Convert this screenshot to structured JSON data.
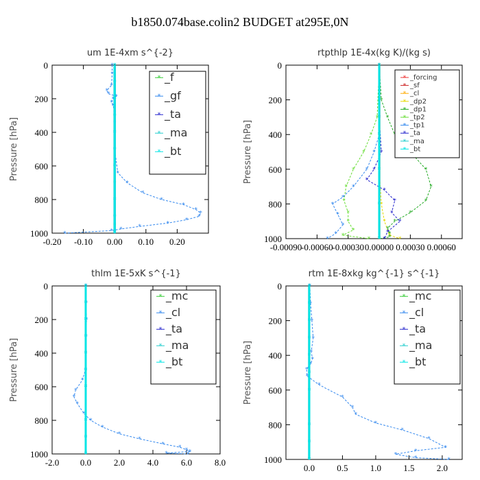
{
  "figure_title": "b1850.074base.colin2  BUDGET at295E,0N",
  "chart_data": [
    {
      "id": "um",
      "type": "line",
      "title": "um   1E-4xm s^{-2}",
      "ylabel": "Pressure [hPa]",
      "xlim": [
        -0.2,
        0.3
      ],
      "ylim": [
        1000,
        0
      ],
      "xticks": [
        -0.2,
        -0.1,
        0.0,
        0.1,
        0.2
      ],
      "xtick_labels": [
        "-0.20",
        "-0.10",
        "0.00",
        "0.10",
        "0.20"
      ],
      "yticks": [
        0,
        200,
        400,
        600,
        800,
        1000
      ],
      "ytick_labels": [
        "0",
        "200",
        "400",
        "600",
        "800",
        "1000"
      ],
      "legend_position": "top-right",
      "series": [
        {
          "name": "_f",
          "color": "#33cc33",
          "x": [
            0,
            0,
            0,
            0,
            0,
            0,
            0,
            0,
            0,
            0,
            0,
            0
          ],
          "y": [
            0,
            100,
            200,
            300,
            400,
            500,
            600,
            700,
            800,
            900,
            950,
            1000
          ]
        },
        {
          "name": "_gf",
          "color": "#3388ee",
          "x": [
            -0.008,
            -0.008,
            -0.01,
            -0.025,
            -0.02,
            0.005,
            -0.005,
            -0.01,
            -0.005,
            0,
            0,
            0,
            0,
            0.01,
            0.04,
            0.09,
            0.15,
            0.22,
            0.26,
            0.275,
            0.27,
            0.23,
            0.17,
            0.08,
            0.02,
            -0.01,
            -0.16
          ],
          "y": [
            0,
            50,
            120,
            150,
            170,
            185,
            200,
            220,
            240,
            280,
            340,
            400,
            500,
            640,
            700,
            760,
            800,
            830,
            860,
            880,
            900,
            920,
            940,
            960,
            975,
            985,
            1000
          ]
        },
        {
          "name": "_ta",
          "color": "#2222cc",
          "x": [
            0,
            0,
            0,
            0,
            0,
            0,
            0,
            0,
            0,
            0
          ],
          "y": [
            0,
            100,
            200,
            300,
            400,
            500,
            600,
            800,
            900,
            1000
          ]
        },
        {
          "name": "_ma",
          "color": "#22cccc",
          "x": [
            0,
            0,
            0,
            0,
            0,
            0,
            0,
            0,
            0,
            0
          ],
          "y": [
            0,
            100,
            200,
            300,
            400,
            500,
            600,
            800,
            900,
            1000
          ]
        },
        {
          "name": "_bt",
          "color": "#00e5e5",
          "x": [
            0,
            0,
            0,
            0,
            0,
            0,
            0,
            0,
            0,
            0
          ],
          "y": [
            0,
            100,
            200,
            300,
            400,
            500,
            600,
            800,
            900,
            1000
          ]
        }
      ]
    },
    {
      "id": "rtpthlp",
      "type": "line",
      "title": "rtpthlp   1E-4x(kg K)/(kg s)",
      "ylabel": "Pressure [hPa]",
      "xlim": [
        -0.0009,
        0.0008
      ],
      "ylim": [
        1000,
        0
      ],
      "xticks": [
        -0.0009,
        -0.0006,
        -0.0003,
        0.0,
        0.0003,
        0.0006
      ],
      "xtick_labels": [
        "-0.00090",
        "-0.00060",
        "-0.00030",
        "0.00000",
        "0.00030",
        "0.00060"
      ],
      "yticks": [
        0,
        200,
        400,
        600,
        800,
        1000
      ],
      "ytick_labels": [
        "0",
        "200",
        "400",
        "600",
        "800",
        "1000"
      ],
      "legend_position": "top-right",
      "series": [
        {
          "name": "_forcing",
          "color": "#ee3333",
          "x": [
            0,
            0,
            0,
            0,
            0,
            0
          ],
          "y": [
            0,
            200,
            400,
            600,
            800,
            1000
          ]
        },
        {
          "name": "_sf",
          "color": "#cc2222",
          "x": [
            0,
            0,
            0,
            0,
            0,
            0
          ],
          "y": [
            0,
            200,
            400,
            600,
            800,
            1000
          ]
        },
        {
          "name": "_cl",
          "color": "#ffaa00",
          "x": [
            0,
            0,
            0,
            0,
            0,
            0
          ],
          "y": [
            0,
            200,
            400,
            600,
            800,
            1000
          ]
        },
        {
          "name": "_dp2",
          "color": "#e6d800",
          "x": [
            0,
            0,
            0,
            0,
            2e-05,
            5e-05,
            0.0001,
            0.0002
          ],
          "y": [
            0,
            200,
            400,
            600,
            800,
            900,
            980,
            1000
          ]
        },
        {
          "name": "_dp1",
          "color": "#22aa22",
          "x": [
            0,
            2e-05,
            8e-05,
            0.00015,
            0.0003,
            0.00045,
            0.0005,
            0.00045,
            0.0003,
            0.00015,
            8e-05,
            0.0001,
            0.0001,
            0.0
          ],
          "y": [
            0,
            200,
            300,
            400,
            500,
            600,
            700,
            780,
            850,
            900,
            940,
            970,
            990,
            1000
          ]
        },
        {
          "name": "_tp2",
          "color": "#66dd33",
          "x": [
            0,
            -2e-05,
            -8e-05,
            -0.00015,
            -0.00025,
            -0.00032,
            -0.00034,
            -0.0003,
            -0.0003,
            -0.00025,
            -0.00035,
            -0.0001
          ],
          "y": [
            0,
            300,
            400,
            500,
            600,
            700,
            780,
            850,
            900,
            950,
            980,
            1000
          ]
        },
        {
          "name": "_tp1",
          "color": "#3388ee",
          "x": [
            0,
            0,
            -5e-05,
            -0.00012,
            -0.00025,
            -0.00035,
            -0.00045,
            -0.0004,
            -0.00035,
            -0.00042,
            -0.0005
          ],
          "y": [
            0,
            400,
            500,
            600,
            700,
            760,
            800,
            860,
            920,
            970,
            1000
          ]
        },
        {
          "name": "_ta",
          "color": "#2222cc",
          "x": [
            0,
            0,
            2e-05,
            -5e-05,
            -0.00012,
            5e-05,
            0.00015,
            0.00012,
            0.0002,
            8e-05,
            5e-05
          ],
          "y": [
            0,
            300,
            500,
            600,
            660,
            720,
            780,
            850,
            900,
            960,
            1000
          ]
        },
        {
          "name": "_ma",
          "color": "#22cccc",
          "x": [
            0,
            0,
            0,
            0,
            0,
            0
          ],
          "y": [
            0,
            200,
            400,
            600,
            800,
            1000
          ]
        },
        {
          "name": "_bt",
          "color": "#00e5e5",
          "x": [
            0,
            0,
            0,
            0,
            0,
            0
          ],
          "y": [
            0,
            200,
            400,
            600,
            800,
            1000
          ]
        }
      ]
    },
    {
      "id": "thlm",
      "type": "line",
      "title": "thlm   1E-5xK s^{-1}",
      "ylabel": "Pressure [hPa]",
      "xlim": [
        -2.0,
        8.0
      ],
      "ylim": [
        1000,
        0
      ],
      "xticks": [
        -2.0,
        0.0,
        2.0,
        4.0,
        6.0,
        8.0
      ],
      "xtick_labels": [
        "-2.0",
        "0.0",
        "2.0",
        "4.0",
        "6.0",
        "8.0"
      ],
      "yticks": [
        0,
        200,
        400,
        600,
        800,
        1000
      ],
      "ytick_labels": [
        "0",
        "200",
        "400",
        "600",
        "800",
        "1000"
      ],
      "legend_position": "top-right",
      "series": [
        {
          "name": "_mc",
          "color": "#33cc33",
          "x": [
            0,
            0,
            0,
            0,
            0,
            0,
            0,
            0,
            0,
            0
          ],
          "y": [
            0,
            100,
            200,
            300,
            400,
            500,
            600,
            800,
            900,
            1000
          ]
        },
        {
          "name": "_cl",
          "color": "#3388ee",
          "x": [
            0.02,
            0.03,
            0.05,
            0.02,
            0,
            -0.02,
            -0.2,
            -0.6,
            -0.7,
            -0.5,
            -0.1,
            0.3,
            1.0,
            2.0,
            3.2,
            4.6,
            5.6,
            6.0,
            6.2,
            4.8,
            6.1
          ],
          "y": [
            0,
            100,
            200,
            300,
            400,
            500,
            560,
            620,
            660,
            700,
            760,
            800,
            840,
            880,
            910,
            940,
            960,
            975,
            985,
            995,
            1000
          ]
        },
        {
          "name": "_ta",
          "color": "#2222cc",
          "x": [
            0,
            0,
            0,
            0,
            0,
            0,
            0,
            0,
            0,
            0
          ],
          "y": [
            0,
            100,
            200,
            300,
            400,
            500,
            600,
            800,
            900,
            1000
          ]
        },
        {
          "name": "_ma",
          "color": "#22cccc",
          "x": [
            0,
            0,
            0,
            0,
            0,
            0,
            0,
            0,
            0,
            0
          ],
          "y": [
            0,
            100,
            200,
            300,
            400,
            500,
            600,
            800,
            900,
            1000
          ]
        },
        {
          "name": "_bt",
          "color": "#00e5e5",
          "x": [
            0,
            0,
            0,
            0,
            0,
            0,
            0,
            0,
            0,
            0
          ],
          "y": [
            0,
            100,
            200,
            300,
            400,
            500,
            600,
            800,
            900,
            1000
          ]
        }
      ]
    },
    {
      "id": "rtm",
      "type": "line",
      "title": "rtm   1E-8xkg kg^{-1} s^{-1}",
      "ylabel": "Pressure [hPa]",
      "xlim": [
        -0.35,
        2.3
      ],
      "ylim": [
        1000,
        0
      ],
      "xticks": [
        0.0,
        0.5,
        1.0,
        1.5,
        2.0
      ],
      "xtick_labels": [
        "0.0",
        "0.5",
        "1.0",
        "1.5",
        "2.0"
      ],
      "yticks": [
        0,
        200,
        400,
        600,
        800,
        1000
      ],
      "ytick_labels": [
        "0",
        "200",
        "400",
        "600",
        "800",
        "1000"
      ],
      "legend_position": "top-right",
      "series": [
        {
          "name": "_mc",
          "color": "#33cc33",
          "x": [
            0,
            0,
            0,
            0,
            0,
            0,
            0,
            0,
            0,
            0
          ],
          "y": [
            0,
            100,
            200,
            300,
            400,
            500,
            600,
            800,
            900,
            1000
          ]
        },
        {
          "name": "_cl",
          "color": "#3388ee",
          "x": [
            0.01,
            0.02,
            0.04,
            0.06,
            0.03,
            0.05,
            0.02,
            -0.04,
            -0.03,
            0.15,
            0.5,
            0.65,
            0.7,
            1.0,
            1.4,
            1.8,
            2.05,
            1.6,
            1.3,
            1.6,
            2.1
          ],
          "y": [
            0,
            100,
            200,
            300,
            380,
            420,
            450,
            480,
            520,
            570,
            640,
            700,
            740,
            790,
            830,
            880,
            930,
            950,
            970,
            990,
            1000
          ]
        },
        {
          "name": "_ta",
          "color": "#2222cc",
          "x": [
            0,
            0,
            0,
            0,
            0,
            0,
            0,
            0,
            0,
            0
          ],
          "y": [
            0,
            100,
            200,
            300,
            400,
            500,
            600,
            800,
            900,
            1000
          ]
        },
        {
          "name": "_ma",
          "color": "#22cccc",
          "x": [
            0,
            0,
            0,
            0,
            0,
            0,
            0,
            0,
            0,
            0
          ],
          "y": [
            0,
            100,
            200,
            300,
            400,
            500,
            600,
            800,
            900,
            1000
          ]
        },
        {
          "name": "_bt",
          "color": "#00e5e5",
          "x": [
            0,
            0,
            0,
            0,
            0,
            0,
            0,
            0,
            0,
            0
          ],
          "y": [
            0,
            100,
            200,
            300,
            400,
            500,
            600,
            800,
            900,
            1000
          ]
        }
      ]
    }
  ]
}
